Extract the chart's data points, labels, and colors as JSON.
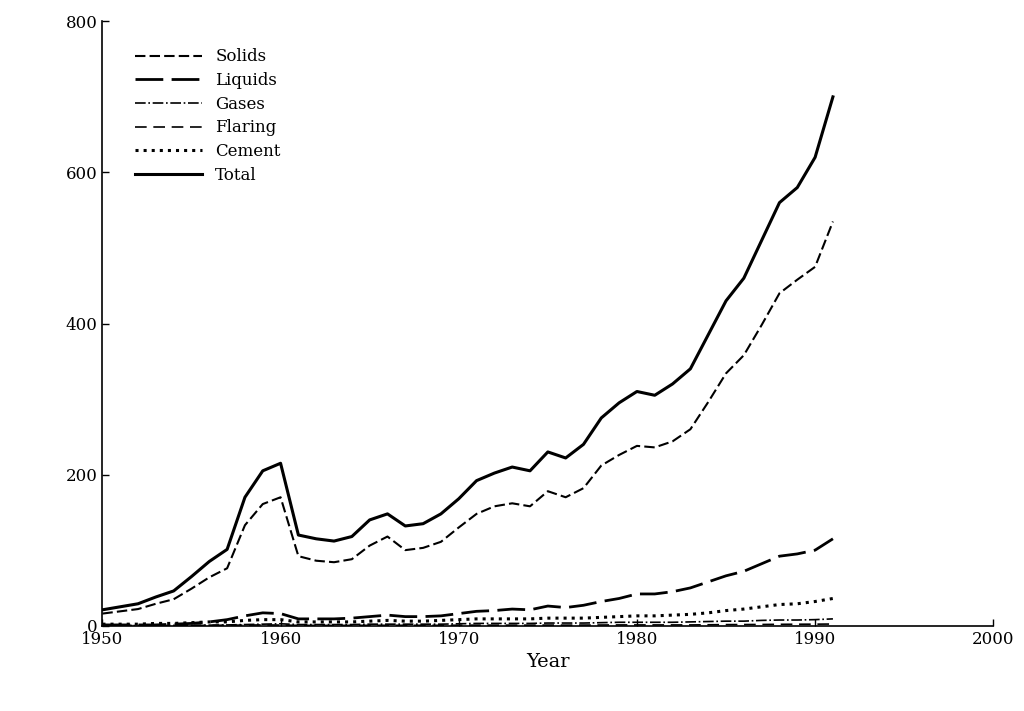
{
  "xlabel": "Year",
  "xlim": [
    1950,
    2000
  ],
  "ylim": [
    0,
    800
  ],
  "xticks": [
    1950,
    1960,
    1970,
    1980,
    1990,
    2000
  ],
  "yticks": [
    0,
    200,
    400,
    600,
    800
  ],
  "years": [
    1950,
    1951,
    1952,
    1953,
    1954,
    1955,
    1956,
    1957,
    1958,
    1959,
    1960,
    1961,
    1962,
    1963,
    1964,
    1965,
    1966,
    1967,
    1968,
    1969,
    1970,
    1971,
    1972,
    1973,
    1974,
    1975,
    1976,
    1977,
    1978,
    1979,
    1980,
    1981,
    1982,
    1983,
    1984,
    1985,
    1986,
    1987,
    1988,
    1989,
    1990,
    1991
  ],
  "total": [
    21,
    25,
    29,
    38,
    46,
    65,
    85,
    101,
    170,
    205,
    215,
    120,
    115,
    112,
    118,
    140,
    148,
    132,
    135,
    148,
    168,
    192,
    202,
    210,
    205,
    230,
    222,
    240,
    275,
    295,
    310,
    305,
    320,
    340,
    385,
    430,
    460,
    510,
    560,
    580,
    620,
    700
  ],
  "solids": [
    16,
    19,
    22,
    29,
    35,
    49,
    64,
    76,
    133,
    161,
    170,
    92,
    86,
    84,
    88,
    106,
    118,
    100,
    103,
    111,
    130,
    148,
    158,
    162,
    158,
    178,
    170,
    182,
    212,
    226,
    238,
    236,
    244,
    260,
    296,
    334,
    358,
    398,
    440,
    458,
    475,
    535
  ],
  "liquids": [
    1,
    1,
    1,
    1,
    2,
    3,
    5,
    8,
    13,
    17,
    16,
    9,
    9,
    9,
    10,
    12,
    14,
    12,
    12,
    13,
    16,
    19,
    20,
    22,
    21,
    26,
    24,
    27,
    32,
    36,
    42,
    42,
    45,
    50,
    58,
    66,
    72,
    82,
    92,
    95,
    100,
    115
  ],
  "gases": [
    0.1,
    0.1,
    0.2,
    0.3,
    0.4,
    0.5,
    0.7,
    1.0,
    1.5,
    2.0,
    2.5,
    1.5,
    1.5,
    1.5,
    1.5,
    2.0,
    2.0,
    2.0,
    2.0,
    2.0,
    2.5,
    3.0,
    3.0,
    3.0,
    3.0,
    3.5,
    3.5,
    3.5,
    4.0,
    4.5,
    4.5,
    4.5,
    4.5,
    5.0,
    5.5,
    6.0,
    6.0,
    7.0,
    7.5,
    7.5,
    8.0,
    9.0
  ],
  "flaring": [
    0.2,
    0.2,
    0.3,
    0.3,
    0.3,
    0.4,
    0.5,
    0.6,
    0.8,
    1.0,
    0.8,
    0.4,
    0.4,
    0.4,
    0.4,
    0.5,
    0.5,
    0.5,
    0.5,
    0.5,
    0.6,
    0.7,
    0.7,
    0.7,
    0.7,
    0.8,
    0.7,
    0.8,
    0.9,
    1.0,
    1.0,
    1.0,
    1.0,
    1.0,
    1.2,
    1.4,
    1.5,
    1.6,
    1.8,
    1.9,
    2.0,
    2.2
  ],
  "cement": [
    2,
    2,
    2,
    3,
    3,
    4,
    5,
    5,
    7,
    8,
    8,
    5,
    5,
    5,
    5,
    6,
    7,
    6,
    6,
    7,
    8,
    9,
    9,
    9,
    9,
    10,
    10,
    10,
    11,
    12,
    13,
    13,
    14,
    15,
    17,
    20,
    22,
    25,
    28,
    29,
    32,
    36
  ]
}
